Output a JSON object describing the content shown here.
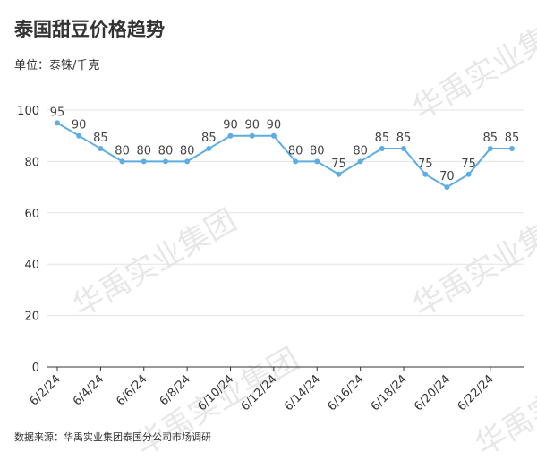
{
  "chart_data": {
    "type": "line",
    "title": "泰国甜豆价格趋势",
    "subtitle": "单位：泰铢/千克",
    "source": "数据来源：华禹实业集团泰国分公司市场调研",
    "watermark": "华禹实业集团",
    "categories": [
      "6/2/24",
      null,
      "6/4/24",
      null,
      "6/6/24",
      null,
      "6/8/24",
      null,
      "6/10/24",
      null,
      "6/12/24",
      null,
      "6/14/24",
      null,
      "6/16/24",
      null,
      "6/18/24",
      null,
      "6/20/24",
      null,
      "6/22/24",
      null
    ],
    "values": [
      95,
      90,
      85,
      80,
      80,
      80,
      80,
      85,
      90,
      90,
      90,
      80,
      80,
      75,
      80,
      85,
      85,
      75,
      70,
      75,
      85,
      85
    ],
    "color": "#5dade2",
    "ylim": [
      0,
      100
    ],
    "yticks": [
      0,
      20,
      40,
      60,
      80,
      100
    ],
    "grid": true
  }
}
